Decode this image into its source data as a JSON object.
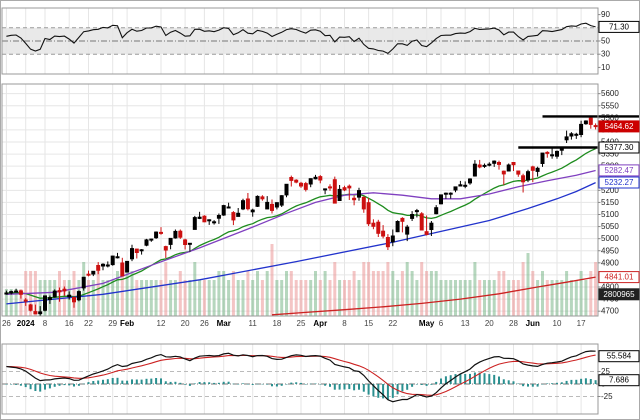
{
  "colors": {
    "up": "#000000",
    "down": "#cc1111",
    "vol_up": "rgba(110,175,125,0.50)",
    "vol_down": "rgba(235,150,150,0.55)",
    "grid": "#e6e6e6",
    "band": "#e9e9e9",
    "panel_border": "#999999",
    "hist": "#2a8f8f",
    "macd_line": "#111111",
    "signal_line": "#cc2222",
    "rsi_line": "#111111",
    "trendline": "#000000",
    "box_styles": {
      "red": {
        "bg": "#cc0000",
        "fg": "#ffffff",
        "br": "#cc0000"
      },
      "plain": {
        "bg": "#ffffff",
        "fg": "#000000",
        "br": "#000000"
      },
      "purple": {
        "bg": "#ffffff",
        "fg": "#8040c0",
        "br": "#8040c0"
      },
      "blue": {
        "bg": "#ffffff",
        "fg": "#2233cc",
        "br": "#2233cc"
      },
      "redline": {
        "bg": "#ffffff",
        "fg": "#cc2222",
        "br": "#cc2222"
      },
      "dark": {
        "bg": "#222222",
        "fg": "#ffffff",
        "br": "#222222"
      }
    }
  },
  "chart_data": {
    "type": "candlestick",
    "panels": {
      "rsi": {
        "ticks": [
          90,
          70,
          50,
          30,
          10
        ],
        "band": [
          30,
          70
        ],
        "box": {
          "v": 71.3,
          "label": "71.30",
          "style": "plain"
        }
      },
      "main": {
        "price_ticks": [
          5600,
          5550,
          5500,
          5450,
          5400,
          5350,
          5300,
          5250,
          5200,
          5150,
          5100,
          5050,
          5000,
          4950,
          4900,
          4850,
          4800,
          4750,
          4700
        ],
        "value_boxes": [
          {
            "v": 5464.62,
            "label": "5464.62",
            "style": "red"
          },
          {
            "v": 5377.3,
            "label": "5377.30",
            "style": "plain"
          },
          {
            "v": 5282.47,
            "label": "5282.47",
            "style": "purple"
          },
          {
            "v": 5232.27,
            "label": "5232.27",
            "style": "blue"
          },
          {
            "v": 4841.01,
            "label": "4841.01",
            "style": "redline"
          },
          {
            "v": 4770.0,
            "label": "2800965",
            "style": "dark"
          }
        ],
        "trendlines": [
          {
            "from": 111,
            "price": 5506
          },
          {
            "from": 106,
            "price": 5377.3
          }
        ]
      },
      "macd": {
        "ticks": [
          50,
          25,
          0,
          -25
        ],
        "boxes": [
          {
            "v": 55.584,
            "label": "55.584",
            "style": "plain"
          },
          {
            "v": 7.686,
            "label": "7.686",
            "style": "plain"
          }
        ]
      }
    },
    "x_ticks": [
      [
        "26",
        0,
        0
      ],
      [
        "2024",
        4,
        1
      ],
      [
        "8",
        8,
        0
      ],
      [
        "16",
        13,
        0
      ],
      [
        "22",
        17,
        0
      ],
      [
        "29",
        22,
        0
      ],
      [
        "Feb",
        25,
        1
      ],
      [
        "12",
        32,
        0
      ],
      [
        "20",
        37,
        0
      ],
      [
        "26",
        41,
        0
      ],
      [
        "Mar",
        45,
        1
      ],
      [
        "11",
        51,
        0
      ],
      [
        "18",
        56,
        0
      ],
      [
        "25",
        61,
        0
      ],
      [
        "Apr",
        65,
        1
      ],
      [
        "8",
        70,
        0
      ],
      [
        "15",
        75,
        0
      ],
      [
        "22",
        80,
        0
      ],
      [
        "May",
        87,
        1
      ],
      [
        "6",
        90,
        0
      ],
      [
        "13",
        95,
        0
      ],
      [
        "20",
        100,
        0
      ],
      [
        "28",
        105,
        0
      ],
      [
        "Jun",
        109,
        1
      ],
      [
        "10",
        114,
        0
      ],
      [
        "17",
        119,
        0
      ]
    ],
    "candles": [
      [
        4773,
        4785,
        4768,
        4775,
        3
      ],
      [
        4775,
        4785,
        4769,
        4781,
        3
      ],
      [
        4782,
        4793,
        4780,
        4783,
        3
      ],
      [
        4784,
        4788,
        4752,
        4770,
        3
      ],
      [
        4746,
        4754,
        4722,
        4743,
        5
      ],
      [
        4726,
        4730,
        4699,
        4704,
        5
      ],
      [
        4698,
        4727,
        4688,
        4689,
        5
      ],
      [
        4690,
        4721,
        4682,
        4697,
        4
      ],
      [
        4704,
        4764,
        4699,
        4763,
        4
      ],
      [
        4748,
        4765,
        4730,
        4756,
        4
      ],
      [
        4759,
        4790,
        4756,
        4783,
        4
      ],
      [
        4785,
        4798,
        4739,
        4780,
        5
      ],
      [
        4791,
        4802,
        4764,
        4784,
        4
      ],
      [
        4760,
        4782,
        4748,
        4766,
        4
      ],
      [
        4757,
        4760,
        4714,
        4739,
        5
      ],
      [
        4747,
        4786,
        4741,
        4781,
        4
      ],
      [
        4796,
        4842,
        4785,
        4840,
        6
      ],
      [
        4853,
        4868,
        4844,
        4850,
        4
      ],
      [
        4854,
        4866,
        4845,
        4865,
        4
      ],
      [
        4889,
        4903,
        4853,
        4869,
        5
      ],
      [
        4887,
        4898,
        4869,
        4894,
        4
      ],
      [
        4889,
        4906,
        4881,
        4891,
        4
      ],
      [
        4893,
        4929,
        4888,
        4928,
        4
      ],
      [
        4925,
        4941,
        4918,
        4925,
        5
      ],
      [
        4899,
        4921,
        4845,
        4846,
        6
      ],
      [
        4862,
        4907,
        4861,
        4906,
        5
      ],
      [
        4917,
        4975,
        4907,
        4959,
        5
      ],
      [
        4957,
        4958,
        4918,
        4943,
        4
      ],
      [
        4950,
        4957,
        4934,
        4954,
        4
      ],
      [
        4973,
        4999,
        4969,
        4995,
        4
      ],
      [
        4995,
        5000,
        4987,
        4998,
        4
      ],
      [
        5004,
        5030,
        4999,
        5027,
        4
      ],
      [
        5026,
        5048,
        5016,
        5022,
        4
      ],
      [
        4967,
        4971,
        4920,
        4953,
        6
      ],
      [
        4976,
        5002,
        4956,
        5001,
        4
      ],
      [
        5003,
        5038,
        5000,
        5030,
        4
      ],
      [
        5031,
        5038,
        4999,
        5006,
        5
      ],
      [
        4995,
        5000,
        4955,
        4976,
        4
      ],
      [
        4977,
        4982,
        4946,
        4981,
        4
      ],
      [
        5038,
        5094,
        5038,
        5087,
        6
      ],
      [
        5084,
        5111,
        5081,
        5089,
        4
      ],
      [
        5093,
        5097,
        5068,
        5070,
        4
      ],
      [
        5074,
        5080,
        5057,
        5078,
        4
      ],
      [
        5067,
        5077,
        5058,
        5070,
        4
      ],
      [
        5085,
        5104,
        5061,
        5096,
        5
      ],
      [
        5098,
        5140,
        5094,
        5137,
        5
      ],
      [
        5131,
        5149,
        5127,
        5131,
        4
      ],
      [
        5108,
        5114,
        5056,
        5078,
        5
      ],
      [
        5092,
        5127,
        5092,
        5105,
        4
      ],
      [
        5123,
        5165,
        5118,
        5157,
        4
      ],
      [
        5164,
        5189,
        5117,
        5124,
        5
      ],
      [
        5111,
        5124,
        5091,
        5118,
        4
      ],
      [
        5134,
        5179,
        5131,
        5175,
        5
      ],
      [
        5173,
        5180,
        5157,
        5165,
        4
      ],
      [
        5123,
        5176,
        5122,
        5150,
        5
      ],
      [
        5142,
        5162,
        5104,
        5117,
        8
      ],
      [
        5131,
        5151,
        5121,
        5149,
        4
      ],
      [
        5139,
        5180,
        5131,
        5178,
        4
      ],
      [
        5181,
        5226,
        5171,
        5225,
        5
      ],
      [
        5253,
        5261,
        5216,
        5241,
        5
      ],
      [
        5242,
        5246,
        5229,
        5234,
        4
      ],
      [
        5229,
        5235,
        5210,
        5218,
        4
      ],
      [
        5228,
        5235,
        5195,
        5204,
        4
      ],
      [
        5226,
        5250,
        5213,
        5248,
        4
      ],
      [
        5248,
        5264,
        5245,
        5254,
        5
      ],
      [
        5257,
        5263,
        5229,
        5243,
        4
      ],
      [
        5204,
        5208,
        5184,
        5206,
        5
      ],
      [
        5214,
        5225,
        5198,
        5211,
        4
      ],
      [
        5244,
        5257,
        5146,
        5147,
        6
      ],
      [
        5158,
        5222,
        5157,
        5204,
        4
      ],
      [
        5211,
        5219,
        5197,
        5202,
        4
      ],
      [
        5217,
        5224,
        5160,
        5210,
        4
      ],
      [
        5167,
        5178,
        5138,
        5161,
        5
      ],
      [
        5172,
        5211,
        5157,
        5199,
        4
      ],
      [
        5171,
        5175,
        5107,
        5123,
        6
      ],
      [
        5149,
        5168,
        5052,
        5062,
        6
      ],
      [
        5064,
        5080,
        5039,
        5051,
        5
      ],
      [
        5068,
        5078,
        5007,
        5022,
        5
      ],
      [
        5031,
        5056,
        5001,
        5011,
        5
      ],
      [
        5005,
        5019,
        4953,
        4967,
        6
      ],
      [
        4987,
        5038,
        4969,
        5011,
        5
      ],
      [
        5029,
        5076,
        5027,
        5071,
        4
      ],
      [
        5084,
        5089,
        5026,
        5072,
        5
      ],
      [
        5019,
        5057,
        4990,
        5048,
        6
      ],
      [
        5084,
        5114,
        5073,
        5100,
        5
      ],
      [
        5114,
        5123,
        5088,
        5116,
        4
      ],
      [
        5103,
        5110,
        5035,
        5036,
        6
      ],
      [
        5029,
        5096,
        5013,
        5018,
        5
      ],
      [
        5038,
        5073,
        5011,
        5064,
        5
      ],
      [
        5103,
        5139,
        5101,
        5128,
        5
      ],
      [
        5144,
        5181,
        5142,
        5181,
        4
      ],
      [
        5187,
        5191,
        5165,
        5188,
        4
      ],
      [
        5184,
        5192,
        5166,
        5188,
        4
      ],
      [
        5201,
        5215,
        5192,
        5214,
        4
      ],
      [
        5218,
        5239,
        5217,
        5223,
        4
      ],
      [
        5221,
        5237,
        5209,
        5221,
        4
      ],
      [
        5231,
        5250,
        5223,
        5247,
        4
      ],
      [
        5259,
        5325,
        5257,
        5308,
        6
      ],
      [
        5305,
        5326,
        5291,
        5297,
        4
      ],
      [
        5300,
        5311,
        5293,
        5303,
        4
      ],
      [
        5306,
        5316,
        5299,
        5308,
        4
      ],
      [
        5312,
        5324,
        5297,
        5321,
        4
      ],
      [
        5315,
        5323,
        5286,
        5307,
        5
      ],
      [
        5279,
        5282,
        5222,
        5268,
        5
      ],
      [
        5280,
        5311,
        5278,
        5305,
        4
      ],
      [
        5315,
        5315,
        5280,
        5306,
        4
      ],
      [
        5280,
        5282,
        5256,
        5267,
        4
      ],
      [
        5260,
        5269,
        5191,
        5235,
        6
      ],
      [
        5243,
        5285,
        5234,
        5277,
        7
      ],
      [
        5297,
        5302,
        5234,
        5283,
        5
      ],
      [
        5278,
        5298,
        5257,
        5291,
        4
      ],
      [
        5311,
        5354,
        5297,
        5354,
        5
      ],
      [
        5357,
        5362,
        5335,
        5353,
        4
      ],
      [
        5343,
        5375,
        5331,
        5347,
        4
      ],
      [
        5341,
        5365,
        5331,
        5361,
        4
      ],
      [
        5366,
        5379,
        5346,
        5375,
        4
      ],
      [
        5409,
        5447,
        5396,
        5421,
        5
      ],
      [
        5425,
        5441,
        5410,
        5434,
        4
      ],
      [
        5431,
        5438,
        5413,
        5432,
        4
      ],
      [
        5431,
        5488,
        5420,
        5473,
        5
      ],
      [
        5476,
        5490,
        5471,
        5487,
        4
      ],
      [
        5499,
        5506,
        5455,
        5473,
        5
      ],
      [
        5468,
        5477,
        5452,
        5464.62,
        6
      ]
    ],
    "overlays": [
      {
        "name": "ema-green",
        "color": "#1e8c1e",
        "type": "ema",
        "period": 21
      },
      {
        "name": "ma-purple",
        "color": "#8040c0",
        "points": [
          [
            0,
            4770
          ],
          [
            10,
            4778
          ],
          [
            20,
            4815
          ],
          [
            30,
            4890
          ],
          [
            40,
            4962
          ],
          [
            50,
            5040
          ],
          [
            58,
            5105
          ],
          [
            64,
            5150
          ],
          [
            70,
            5180
          ],
          [
            76,
            5190
          ],
          [
            82,
            5180
          ],
          [
            88,
            5165
          ],
          [
            94,
            5165
          ],
          [
            100,
            5185
          ],
          [
            106,
            5215
          ],
          [
            112,
            5240
          ],
          [
            118,
            5262
          ],
          [
            122,
            5282
          ]
        ]
      },
      {
        "name": "ma-blue",
        "color": "#2233cc",
        "points": [
          [
            0,
            4730
          ],
          [
            20,
            4770
          ],
          [
            40,
            4830
          ],
          [
            60,
            4905
          ],
          [
            80,
            4985
          ],
          [
            100,
            5075
          ],
          [
            108,
            5125
          ],
          [
            114,
            5165
          ],
          [
            118,
            5195
          ],
          [
            122,
            5232
          ]
        ]
      },
      {
        "name": "ma-red",
        "color": "#cc2222",
        "points": [
          [
            55,
            4685
          ],
          [
            62,
            4695
          ],
          [
            70,
            4706
          ],
          [
            78,
            4718
          ],
          [
            86,
            4732
          ],
          [
            94,
            4750
          ],
          [
            102,
            4772
          ],
          [
            110,
            4800
          ],
          [
            116,
            4820
          ],
          [
            122,
            4841
          ]
        ]
      }
    ]
  }
}
